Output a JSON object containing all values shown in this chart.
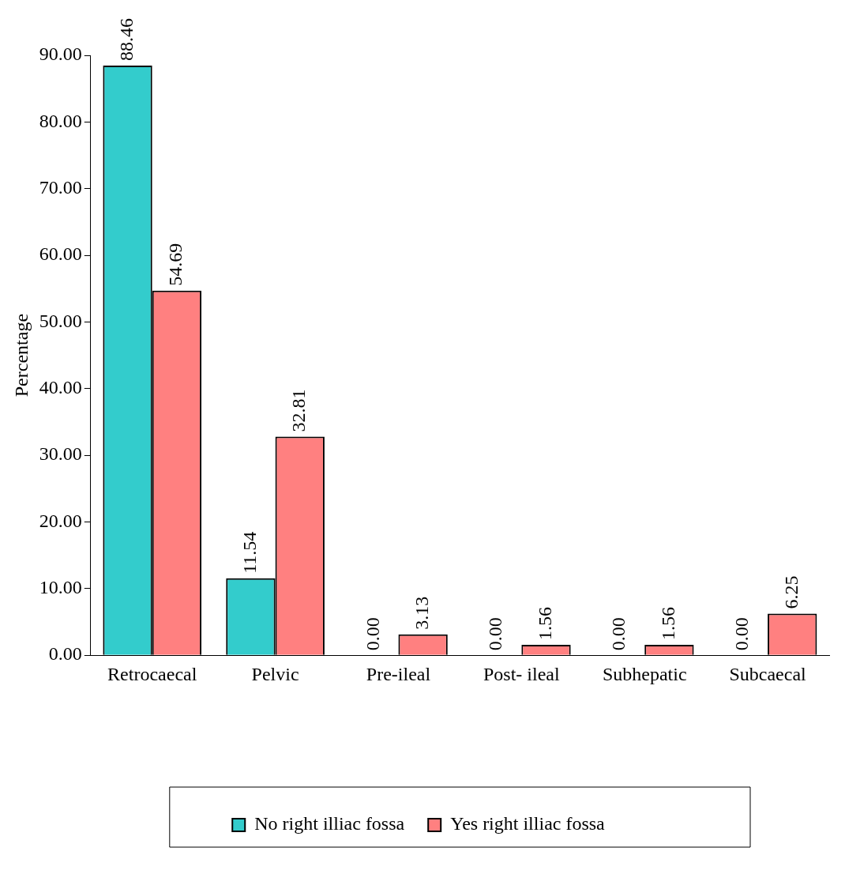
{
  "chart_data": {
    "type": "bar",
    "ylabel": "Percentage",
    "categories": [
      "Retrocaecal",
      "Pelvic",
      "Pre-ileal",
      "Post- ileal",
      "Subhepatic",
      "Subcaecal"
    ],
    "series": [
      {
        "name": "No right illiac fossa",
        "color": "#33cccc",
        "values": [
          88.46,
          11.54,
          0.0,
          0.0,
          0.0,
          0.0
        ]
      },
      {
        "name": "Yes right illiac fossa",
        "color": "#ff8080",
        "values": [
          54.69,
          32.81,
          3.13,
          1.56,
          1.56,
          6.25
        ]
      }
    ],
    "ylim": [
      0,
      90
    ],
    "yticks": [
      {
        "value": 0,
        "label": "0.00"
      },
      {
        "value": 10,
        "label": "10.00"
      },
      {
        "value": 20,
        "label": "20.00"
      },
      {
        "value": 30,
        "label": "30.00"
      },
      {
        "value": 40,
        "label": "40.00"
      },
      {
        "value": 50,
        "label": "50.00"
      },
      {
        "value": 60,
        "label": "60.00"
      },
      {
        "value": 70,
        "label": "70.00"
      },
      {
        "value": 80,
        "label": "80.00"
      },
      {
        "value": 90,
        "label": "90.00"
      }
    ],
    "value_labels": [
      [
        "88.46",
        "11.54",
        "0.00",
        "0.00",
        "0.00",
        "0.00"
      ],
      [
        "54.69",
        "32.81",
        "3.13",
        "1.56",
        "1.56",
        "6.25"
      ]
    ],
    "grid": false,
    "legend": "bottom"
  }
}
